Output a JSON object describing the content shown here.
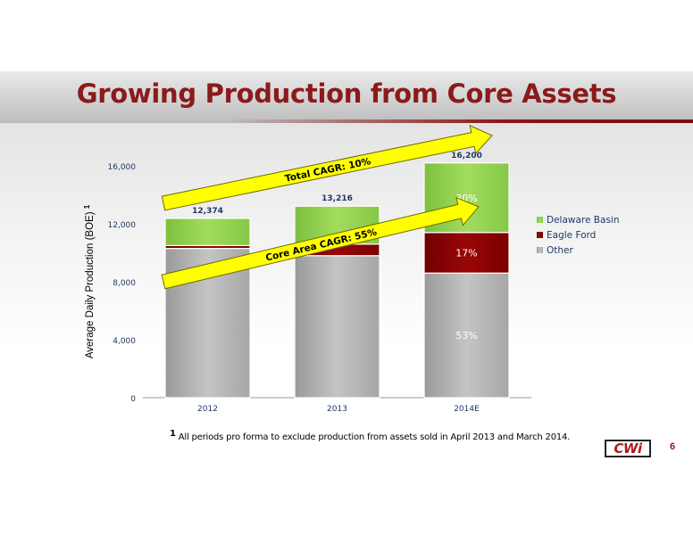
{
  "page": {
    "title": "Growing Production from Core Assets",
    "page_number": "6"
  },
  "footnote": {
    "marker": "1",
    "text": "All periods pro forma to exclude production from assets sold in April 2013 and March 2014."
  },
  "logo": {
    "text": "CWi"
  },
  "colors": {
    "title": "#8b1a1a",
    "delaware": "#92d050",
    "eagle_ford": "#8b0000",
    "other": "#b0b0b0",
    "arrow_fill": "#ffff00"
  },
  "chart_data": {
    "type": "bar",
    "stacked": true,
    "categories": [
      "2012",
      "2013",
      "2014E"
    ],
    "series": [
      {
        "name": "Other",
        "values": [
          10300,
          9800,
          8600
        ]
      },
      {
        "name": "Eagle Ford",
        "values": [
          200,
          800,
          2800
        ]
      },
      {
        "name": "Delaware Basin",
        "values": [
          1874,
          2616,
          4800
        ]
      }
    ],
    "totals": [
      12374,
      13216,
      16200
    ],
    "total_labels": [
      "12,374",
      "13,216",
      "16,200"
    ],
    "segment_labels_2014E": {
      "Delaware Basin": "30%",
      "Eagle Ford": "17%",
      "Other": "53%"
    },
    "ylabel": "Average Daily Production (BOE)",
    "ylabel_sup": "1",
    "ylim": [
      0,
      16000
    ],
    "yticks": [
      0,
      4000,
      8000,
      12000,
      16000
    ],
    "ytick_labels": [
      "0",
      "4,000",
      "8,000",
      "12,000",
      "16,000"
    ],
    "legend": {
      "placement": "right",
      "order": [
        "Delaware Basin",
        "Eagle Ford",
        "Other"
      ]
    },
    "annotations": [
      {
        "text": "Total CAGR:  10%"
      },
      {
        "text": "Core Area CAGR:  55%"
      }
    ],
    "grid": false
  }
}
